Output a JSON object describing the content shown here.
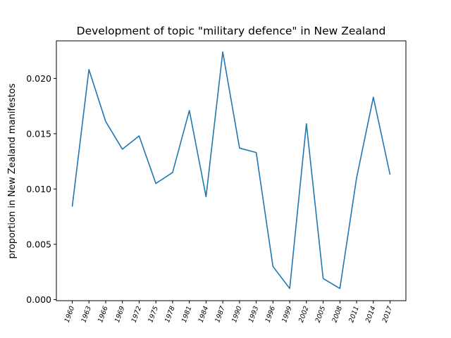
{
  "chart_data": {
    "type": "line",
    "title": "Development of topic \"military defence\" in New Zealand",
    "xlabel": "",
    "ylabel": "proportion in New Zealand manifestos",
    "categories": [
      "1960",
      "1963",
      "1966",
      "1969",
      "1972",
      "1975",
      "1978",
      "1981",
      "1984",
      "1987",
      "1990",
      "1993",
      "1996",
      "1999",
      "2002",
      "2005",
      "2008",
      "2011",
      "2014",
      "2017"
    ],
    "series": [
      {
        "name": "",
        "color": "#1f77b4",
        "values": [
          0.0084,
          0.0208,
          0.0161,
          0.0136,
          0.0148,
          0.0105,
          0.0115,
          0.0171,
          0.0093,
          0.0224,
          0.0137,
          0.0133,
          0.003,
          0.001,
          0.0159,
          0.0019,
          0.001,
          0.011,
          0.0183,
          0.0113
        ]
      }
    ],
    "ylim": [
      -0.0001,
      0.0234
    ],
    "yticks": [
      "0.000",
      "0.005",
      "0.010",
      "0.015",
      "0.020"
    ],
    "grid": false
  }
}
